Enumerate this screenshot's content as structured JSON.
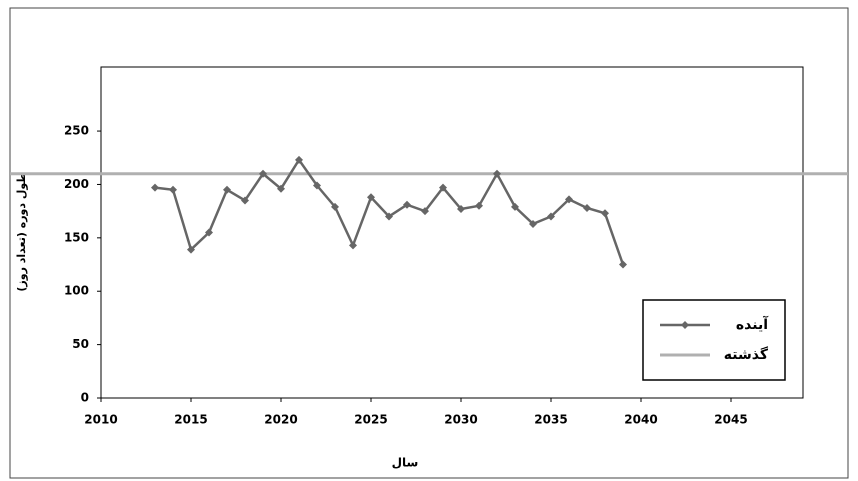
{
  "chart_data": {
    "type": "line",
    "x_label": "سال",
    "y_label": "طول دوره (تعداد روز)",
    "x": [
      2013,
      2014,
      2015,
      2016,
      2017,
      2018,
      2019,
      2020,
      2021,
      2022,
      2023,
      2024,
      2025,
      2026,
      2027,
      2028,
      2029,
      2030,
      2031,
      2032,
      2033,
      2034,
      2035,
      2036,
      2037,
      2038,
      2039
    ],
    "series": [
      {
        "name": "آینده",
        "color": "#666666",
        "values": [
          197,
          195,
          139,
          155,
          195,
          185,
          210,
          196,
          223,
          199,
          179,
          143,
          188,
          170,
          181,
          175,
          197,
          177,
          180,
          210,
          179,
          163,
          170,
          186,
          178,
          173,
          125
        ]
      }
    ],
    "reference_line": {
      "name": "گذشته",
      "color": "#b0b0b0",
      "value": 210
    },
    "xlim": [
      2010,
      2049
    ],
    "ylim": [
      0,
      310
    ],
    "xticks": [
      2010,
      2015,
      2020,
      2025,
      2030,
      2035,
      2040,
      2045
    ],
    "yticks": [
      0,
      50,
      100,
      150,
      200,
      250
    ],
    "legend": "lower right"
  }
}
